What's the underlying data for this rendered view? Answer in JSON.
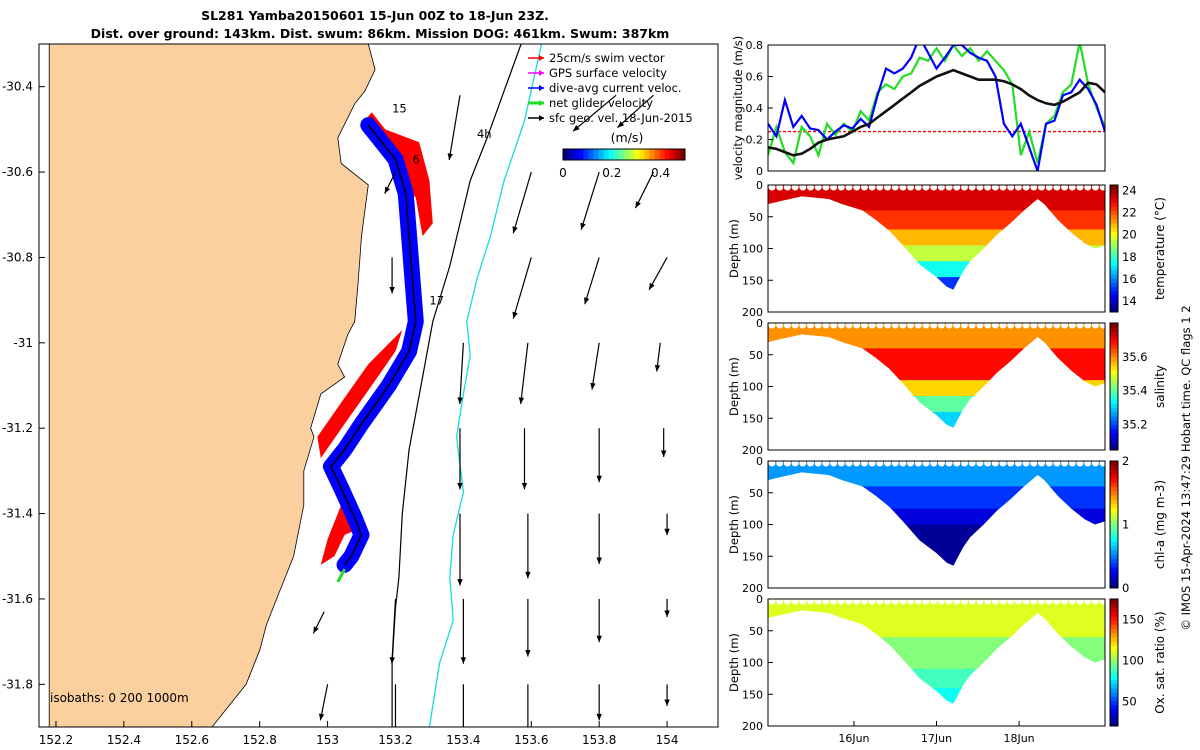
{
  "header": {
    "line1": "SL281 Yamba20150601 15-Jun 00Z to 18-Jun 23Z.",
    "line2": "Dist. over ground: 143km. Dist. swum: 86km. Mission DOG: 461km. Swum: 387km"
  },
  "side_text": "© IMOS 15-Apr-2024 13:47:29 Hobart time. QC flags 1  2",
  "colors": {
    "land": "#fbcf9e",
    "red": "#ff0000",
    "blue": "#0000ff",
    "green": "#22dd22",
    "black": "#000000",
    "cyan": "#22dddd",
    "magenta": "#ff00ff"
  },
  "chart_data": [
    {
      "id": "map",
      "type": "scatter",
      "xlim": [
        152.15,
        154.15
      ],
      "ylim": [
        -31.9,
        -30.3
      ],
      "xticks": [
        "152.2",
        "152.4",
        "152.6",
        "152.8",
        "153",
        "153.2",
        "153.4",
        "153.6",
        "153.8",
        "154"
      ],
      "yticks": [
        "-30.4",
        "-30.6",
        "-30.8",
        "-31",
        "-31.2",
        "-31.4",
        "-31.6",
        "-31.8"
      ],
      "legend": {
        "placement": "top-right",
        "entries": [
          "25cm/s swim vector",
          "GPS surface velocity",
          "dive-avg current veloc.",
          "net glider velocity",
          "sfc geo. vel. 18-Jun-2015"
        ]
      },
      "colorbar": {
        "label": "(m/s)",
        "ticks": [
          "0",
          "0.2",
          "0.4"
        ],
        "range": [
          0,
          0.5
        ]
      },
      "isobath_label": "isobaths: 0   200  1000m",
      "track_labels": [
        {
          "text": "15",
          "lon": 153.19,
          "lat": -30.46
        },
        {
          "text": "6",
          "lon": 153.25,
          "lat": -30.58
        },
        {
          "text": "17",
          "lon": 153.3,
          "lat": -30.91
        },
        {
          "text": "4h",
          "lon": 153.44,
          "lat": -30.52
        }
      ],
      "coast": [
        [
          152.18,
          -30.3
        ],
        [
          153.12,
          -30.3
        ],
        [
          153.14,
          -30.36
        ],
        [
          153.11,
          -30.41
        ],
        [
          153.08,
          -30.44
        ],
        [
          153.03,
          -30.52
        ],
        [
          153.04,
          -30.58
        ],
        [
          153.12,
          -30.63
        ],
        [
          153.1,
          -30.75
        ],
        [
          153.09,
          -30.86
        ],
        [
          153.08,
          -30.95
        ],
        [
          153.06,
          -30.98
        ],
        [
          153.03,
          -31.05
        ],
        [
          153.05,
          -31.08
        ],
        [
          152.98,
          -31.12
        ],
        [
          152.95,
          -31.2
        ],
        [
          152.96,
          -31.22
        ],
        [
          152.93,
          -31.3
        ],
        [
          152.93,
          -31.38
        ],
        [
          152.91,
          -31.46
        ],
        [
          152.9,
          -31.5
        ],
        [
          152.87,
          -31.56
        ],
        [
          152.85,
          -31.6
        ],
        [
          152.82,
          -31.66
        ],
        [
          152.8,
          -31.72
        ],
        [
          152.76,
          -31.8
        ],
        [
          152.7,
          -31.86
        ],
        [
          152.66,
          -31.9
        ],
        [
          152.18,
          -31.9
        ]
      ],
      "track": [
        [
          153.12,
          -30.49
        ],
        [
          153.2,
          -30.57
        ],
        [
          153.23,
          -30.65
        ],
        [
          153.24,
          -30.75
        ],
        [
          153.25,
          -30.85
        ],
        [
          153.26,
          -30.95
        ],
        [
          153.24,
          -31.02
        ],
        [
          153.18,
          -31.1
        ],
        [
          153.1,
          -31.19
        ],
        [
          153.05,
          -31.25
        ],
        [
          153.01,
          -31.29
        ],
        [
          153.04,
          -31.34
        ],
        [
          153.08,
          -31.41
        ],
        [
          153.1,
          -31.45
        ],
        [
          153.07,
          -31.5
        ],
        [
          153.05,
          -31.52
        ]
      ],
      "red_band": [
        [
          153.13,
          -30.46
        ],
        [
          153.17,
          -30.5
        ],
        [
          153.27,
          -30.53
        ],
        [
          153.3,
          -30.62
        ],
        [
          153.31,
          -30.72
        ],
        [
          153.28,
          -30.75
        ],
        [
          153.26,
          -30.66
        ],
        [
          153.2,
          -30.6
        ],
        [
          153.16,
          -30.54
        ],
        [
          153.1,
          -30.49
        ]
      ],
      "red_band2": [
        [
          153.22,
          -30.97
        ],
        [
          153.12,
          -31.05
        ],
        [
          153.04,
          -31.14
        ],
        [
          152.97,
          -31.22
        ],
        [
          152.98,
          -31.27
        ],
        [
          153.05,
          -31.19
        ],
        [
          153.13,
          -31.1
        ],
        [
          153.2,
          -31.02
        ]
      ],
      "red_band3": [
        [
          153.04,
          -31.38
        ],
        [
          153.08,
          -31.4
        ],
        [
          153.08,
          -31.44
        ],
        [
          153.05,
          -31.45
        ],
        [
          153.02,
          -31.5
        ],
        [
          152.98,
          -31.52
        ],
        [
          153.0,
          -31.46
        ]
      ],
      "arrows": [
        {
          "lon": 153.39,
          "lat": -30.42,
          "u": -0.03,
          "v": -0.18
        },
        {
          "lon": 153.85,
          "lat": -30.42,
          "u": -0.12,
          "v": -0.1
        },
        {
          "lon": 153.96,
          "lat": -30.42,
          "u": -0.1,
          "v": -0.09
        },
        {
          "lon": 153.6,
          "lat": -30.6,
          "u": -0.05,
          "v": -0.17
        },
        {
          "lon": 153.8,
          "lat": -30.6,
          "u": -0.05,
          "v": -0.16
        },
        {
          "lon": 153.96,
          "lat": -30.6,
          "u": -0.05,
          "v": -0.1
        },
        {
          "lon": 153.2,
          "lat": -30.6,
          "u": -0.03,
          "v": -0.06
        },
        {
          "lon": 153.19,
          "lat": -30.8,
          "u": 0.0,
          "v": -0.1
        },
        {
          "lon": 153.6,
          "lat": -30.8,
          "u": -0.05,
          "v": -0.17
        },
        {
          "lon": 153.8,
          "lat": -30.8,
          "u": -0.04,
          "v": -0.13
        },
        {
          "lon": 154.0,
          "lat": -30.8,
          "u": -0.05,
          "v": -0.09
        },
        {
          "lon": 153.4,
          "lat": -31.0,
          "u": -0.01,
          "v": -0.17
        },
        {
          "lon": 153.59,
          "lat": -31.0,
          "u": -0.02,
          "v": -0.17
        },
        {
          "lon": 153.8,
          "lat": -31.0,
          "u": -0.02,
          "v": -0.13
        },
        {
          "lon": 153.98,
          "lat": -31.0,
          "u": -0.01,
          "v": -0.08
        },
        {
          "lon": 153.39,
          "lat": -31.2,
          "u": 0.0,
          "v": -0.17
        },
        {
          "lon": 153.58,
          "lat": -31.2,
          "u": 0.0,
          "v": -0.17
        },
        {
          "lon": 153.8,
          "lat": -31.2,
          "u": 0.0,
          "v": -0.15
        },
        {
          "lon": 153.99,
          "lat": -31.2,
          "u": 0.0,
          "v": -0.08
        },
        {
          "lon": 153.39,
          "lat": -31.4,
          "u": 0.0,
          "v": -0.2
        },
        {
          "lon": 153.59,
          "lat": -31.4,
          "u": 0.0,
          "v": -0.18
        },
        {
          "lon": 153.8,
          "lat": -31.4,
          "u": 0.0,
          "v": -0.14
        },
        {
          "lon": 154.0,
          "lat": -31.4,
          "u": 0.0,
          "v": -0.06
        },
        {
          "lon": 153.2,
          "lat": -31.6,
          "u": -0.01,
          "v": -0.18
        },
        {
          "lon": 153.4,
          "lat": -31.6,
          "u": 0.0,
          "v": -0.18
        },
        {
          "lon": 153.59,
          "lat": -31.6,
          "u": 0.0,
          "v": -0.16
        },
        {
          "lon": 153.8,
          "lat": -31.6,
          "u": 0.0,
          "v": -0.12
        },
        {
          "lon": 154.0,
          "lat": -31.6,
          "u": 0.0,
          "v": -0.05
        },
        {
          "lon": 152.99,
          "lat": -31.63,
          "u": -0.03,
          "v": -0.06
        },
        {
          "lon": 153.0,
          "lat": -31.8,
          "u": -0.02,
          "v": -0.1
        },
        {
          "lon": 153.2,
          "lat": -31.8,
          "u": 0.0,
          "v": -0.15
        },
        {
          "lon": 153.4,
          "lat": -31.8,
          "u": 0.0,
          "v": -0.16
        },
        {
          "lon": 153.59,
          "lat": -31.8,
          "u": 0.0,
          "v": -0.14
        },
        {
          "lon": 153.8,
          "lat": -31.8,
          "u": 0.0,
          "v": -0.1
        },
        {
          "lon": 154.0,
          "lat": -31.8,
          "u": 0.0,
          "v": -0.06
        }
      ]
    },
    {
      "id": "velocity",
      "type": "line",
      "ylabel": "velocity magnitude (m/s)",
      "ylim": [
        0,
        0.8
      ],
      "yticks": [
        "0",
        "0.2",
        "0.4",
        "0.6",
        "0.8"
      ],
      "x": [
        0,
        0.1,
        0.2,
        0.3,
        0.4,
        0.5,
        0.6,
        0.7,
        0.8,
        0.9,
        1.0,
        1.1,
        1.2,
        1.3,
        1.4,
        1.5,
        1.6,
        1.7,
        1.8,
        1.9,
        2.0,
        2.1,
        2.2,
        2.3,
        2.4,
        2.5,
        2.6,
        2.7,
        2.8,
        2.9,
        3.0,
        3.1,
        3.2,
        3.3,
        3.4,
        3.5,
        3.6,
        3.7,
        3.8,
        3.9,
        4.0
      ],
      "series": [
        {
          "color": "black",
          "values": [
            0.15,
            0.14,
            0.12,
            0.1,
            0.11,
            0.14,
            0.18,
            0.2,
            0.21,
            0.22,
            0.25,
            0.28,
            0.3,
            0.34,
            0.38,
            0.42,
            0.46,
            0.5,
            0.54,
            0.57,
            0.6,
            0.62,
            0.64,
            0.62,
            0.6,
            0.58,
            0.58,
            0.58,
            0.57,
            0.55,
            0.52,
            0.48,
            0.45,
            0.43,
            0.42,
            0.44,
            0.47,
            0.5,
            0.56,
            0.55,
            0.5
          ]
        },
        {
          "color": "green",
          "values": [
            0.1,
            0.28,
            0.12,
            0.05,
            0.28,
            0.22,
            0.1,
            0.3,
            0.23,
            0.3,
            0.25,
            0.38,
            0.32,
            0.5,
            0.55,
            0.52,
            0.6,
            0.62,
            0.72,
            0.7,
            0.78,
            0.7,
            0.8,
            0.73,
            0.78,
            0.7,
            0.76,
            0.7,
            0.64,
            0.55,
            0.1,
            0.25,
            0.05,
            0.3,
            0.35,
            0.5,
            0.55,
            0.82,
            0.55,
            0.4,
            0.28
          ]
        },
        {
          "color": "blue",
          "values": [
            0.3,
            0.22,
            0.45,
            0.28,
            0.35,
            0.27,
            0.26,
            0.2,
            0.25,
            0.29,
            0.27,
            0.33,
            0.28,
            0.48,
            0.65,
            0.62,
            0.65,
            0.72,
            0.85,
            0.75,
            0.65,
            0.72,
            0.8,
            0.8,
            0.75,
            0.72,
            0.7,
            0.6,
            0.3,
            0.22,
            0.3,
            0.15,
            0.0,
            0.3,
            0.32,
            0.48,
            0.5,
            0.58,
            0.52,
            0.42,
            0.25
          ]
        },
        {
          "color": "red",
          "values": [
            0.25,
            0.25,
            0.25,
            0.25,
            0.25,
            0.25,
            0.25,
            0.25,
            0.25,
            0.25,
            0.25,
            0.25,
            0.25,
            0.25,
            0.25,
            0.25,
            0.25,
            0.25,
            0.25,
            0.25,
            0.25,
            0.25,
            0.25,
            0.25,
            0.25,
            0.25,
            0.25,
            0.25,
            0.25,
            0.25,
            0.25,
            0.25,
            0.25,
            0.25,
            0.25,
            0.25,
            0.25,
            0.25,
            0.25,
            0.25,
            0.25
          ]
        }
      ]
    },
    {
      "id": "temperature",
      "type": "heatmap",
      "ylabel": "Depth (m)",
      "ylim": [
        0,
        200
      ],
      "yticks": [
        "0",
        "50",
        "100",
        "150",
        "200"
      ],
      "colorbar": {
        "label": "temperature (°C)",
        "range": [
          13,
          24.5
        ],
        "ticks": [
          "14",
          "16",
          "18",
          "20",
          "22",
          "24"
        ]
      },
      "layers": [
        {
          "value": 23.5,
          "top": 0
        },
        {
          "value": 22.5,
          "top": 40
        },
        {
          "value": 21.0,
          "top": 70
        },
        {
          "value": 19.5,
          "top": 95
        },
        {
          "value": 17.5,
          "top": 120
        },
        {
          "value": 15.0,
          "top": 145
        }
      ]
    },
    {
      "id": "salinity",
      "type": "heatmap",
      "ylabel": "Depth (m)",
      "ylim": [
        0,
        200
      ],
      "yticks": [
        "0",
        "50",
        "100",
        "150",
        "200"
      ],
      "colorbar": {
        "label": "salinity",
        "range": [
          35.05,
          35.8
        ],
        "ticks": [
          "35.2",
          "35.4",
          "35.6"
        ]
      },
      "layers": [
        {
          "value": 35.6,
          "top": 0
        },
        {
          "value": 35.7,
          "top": 40
        },
        {
          "value": 35.55,
          "top": 90
        },
        {
          "value": 35.4,
          "top": 115
        },
        {
          "value": 35.3,
          "top": 140
        }
      ]
    },
    {
      "id": "chlorophyll",
      "type": "heatmap",
      "ylabel": "Depth (m)",
      "ylim": [
        0,
        200
      ],
      "yticks": [
        "0",
        "50",
        "100",
        "150",
        "200"
      ],
      "colorbar": {
        "label": "chl-a (mg m-3)",
        "range": [
          0,
          2
        ],
        "ticks": [
          "0",
          "1",
          "2"
        ]
      },
      "layers": [
        {
          "value": 0.55,
          "top": 0
        },
        {
          "value": 0.35,
          "top": 40
        },
        {
          "value": 0.18,
          "top": 75
        },
        {
          "value": 0.05,
          "top": 100
        }
      ]
    },
    {
      "id": "oxygen",
      "type": "heatmap",
      "ylabel": "Depth (m)",
      "ylim": [
        0,
        200
      ],
      "yticks": [
        "0",
        "50",
        "100",
        "150",
        "200"
      ],
      "xticks": [
        "16Jun",
        "17Jun",
        "18Jun"
      ],
      "colorbar": {
        "label": "Ox. sat. ratio (%)",
        "range": [
          20,
          175
        ],
        "ticks": [
          "50",
          "100",
          "150"
        ]
      },
      "layers": [
        {
          "value": 112,
          "top": 0
        },
        {
          "value": 98,
          "top": 60
        },
        {
          "value": 88,
          "top": 110
        },
        {
          "value": 80,
          "top": 140
        }
      ]
    }
  ]
}
